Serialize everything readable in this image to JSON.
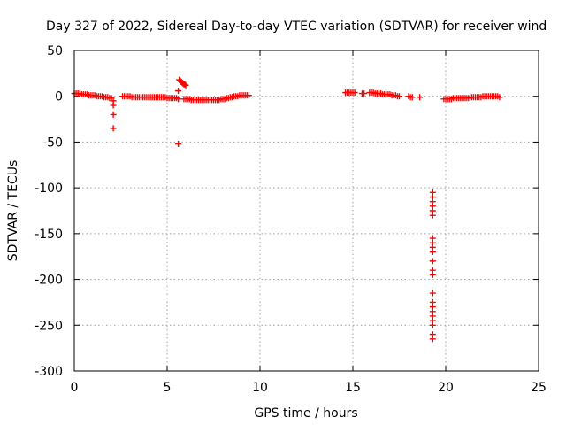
{
  "chart_data": {
    "type": "scatter",
    "title": "Day 327 of 2022, Sidereal Day-to-day VTEC variation (SDTVAR) for receiver wind",
    "xlabel": "GPS time / hours",
    "ylabel": "SDTVAR / TECUs",
    "xlim": [
      0,
      25
    ],
    "ylim": [
      -300,
      50
    ],
    "xticks": [
      0,
      5,
      10,
      15,
      20,
      25
    ],
    "yticks": [
      50,
      0,
      -50,
      -100,
      -150,
      -200,
      -250,
      -300
    ],
    "xtick_labels": [
      "0",
      "5",
      "10",
      "15",
      "20",
      "25"
    ],
    "ytick_labels": [
      "50",
      "0",
      "-50",
      "-100",
      "-150",
      "-200",
      "-250",
      "-300"
    ],
    "grid": true,
    "marker": "+",
    "color": "#ff0000",
    "series": [
      {
        "name": "SDTVAR",
        "x": [
          0.0,
          0.1,
          0.2,
          0.3,
          0.4,
          0.5,
          0.6,
          0.7,
          0.8,
          0.9,
          1.0,
          1.1,
          1.2,
          1.3,
          1.4,
          1.5,
          1.6,
          1.7,
          1.8,
          1.9,
          2.0,
          2.1,
          2.1,
          2.1,
          2.1,
          2.6,
          2.7,
          2.8,
          2.9,
          3.0,
          3.1,
          3.2,
          3.3,
          3.4,
          3.5,
          3.6,
          3.7,
          3.8,
          3.9,
          4.0,
          4.1,
          4.2,
          4.3,
          4.4,
          4.5,
          4.6,
          4.7,
          4.8,
          4.9,
          5.0,
          5.1,
          5.2,
          5.3,
          5.4,
          5.5,
          5.6,
          5.6,
          5.6,
          5.65,
          5.7,
          5.75,
          5.8,
          5.85,
          5.9,
          5.95,
          6.0,
          5.9,
          6.0,
          6.1,
          6.2,
          6.3,
          6.4,
          6.5,
          6.6,
          6.7,
          6.8,
          6.9,
          7.0,
          7.1,
          7.2,
          7.3,
          7.4,
          7.5,
          7.6,
          7.7,
          7.8,
          7.9,
          8.0,
          8.1,
          8.2,
          8.3,
          8.4,
          8.5,
          8.6,
          8.7,
          8.8,
          8.9,
          9.0,
          9.1,
          9.2,
          9.3,
          9.4,
          14.6,
          14.7,
          14.8,
          14.9,
          15.0,
          15.1,
          15.5,
          15.6,
          15.9,
          16.0,
          16.1,
          16.2,
          16.3,
          16.4,
          16.5,
          16.6,
          16.7,
          16.8,
          16.9,
          17.0,
          17.1,
          17.2,
          17.3,
          17.4,
          17.5,
          18.0,
          18.1,
          18.2,
          18.6,
          19.3,
          19.3,
          19.3,
          19.3,
          19.3,
          19.3,
          19.3,
          19.3,
          19.3,
          19.3,
          19.3,
          19.3,
          19.3,
          19.3,
          19.3,
          19.3,
          19.3,
          19.3,
          19.3,
          19.3,
          19.3,
          19.3,
          19.9,
          20.0,
          20.1,
          20.2,
          20.3,
          20.4,
          20.5,
          20.6,
          20.7,
          20.8,
          20.9,
          21.0,
          21.1,
          21.2,
          21.3,
          21.4,
          21.5,
          21.6,
          21.7,
          21.8,
          21.9,
          22.0,
          22.1,
          22.2,
          22.3,
          22.4,
          22.5,
          22.6,
          22.7,
          22.8,
          22.9
        ],
        "y": [
          3,
          3,
          3,
          3,
          2,
          2,
          2,
          2,
          1,
          1,
          1,
          1,
          0,
          0,
          0,
          0,
          -1,
          -1,
          -1,
          -2,
          -2,
          -5,
          -10,
          -20,
          -35,
          0,
          0,
          0,
          0,
          0,
          -1,
          -1,
          -1,
          -1,
          -1,
          -1,
          -1,
          -1,
          -1,
          -1,
          -1,
          -1,
          -1,
          -1,
          -1,
          -1,
          -1,
          -1,
          -1,
          -2,
          -2,
          -2,
          -2,
          -2,
          -2,
          -3,
          6,
          -52,
          18,
          17,
          16,
          15,
          14,
          13,
          13,
          12,
          -3,
          -3,
          -3,
          -3,
          -4,
          -4,
          -4,
          -4,
          -4,
          -4,
          -4,
          -4,
          -4,
          -4,
          -4,
          -4,
          -4,
          -4,
          -4,
          -4,
          -3,
          -3,
          -3,
          -2,
          -2,
          -1,
          -1,
          0,
          0,
          0,
          1,
          1,
          1,
          1,
          1,
          1,
          4,
          4,
          4,
          4,
          4,
          4,
          3,
          3,
          4,
          4,
          4,
          3,
          3,
          3,
          3,
          2,
          2,
          2,
          2,
          2,
          1,
          1,
          1,
          0,
          0,
          0,
          -1,
          -1,
          -1,
          -105,
          -110,
          -115,
          -120,
          -125,
          -130,
          -155,
          -160,
          -165,
          -170,
          -180,
          -190,
          -195,
          -215,
          -225,
          -230,
          -235,
          -240,
          -245,
          -250,
          -260,
          -265,
          -3,
          -3,
          -3,
          -3,
          -3,
          -2,
          -2,
          -2,
          -2,
          -2,
          -2,
          -2,
          -2,
          -2,
          -2,
          -1,
          -1,
          -1,
          -1,
          -1,
          -1,
          0,
          0,
          0,
          0,
          0,
          0,
          0,
          0,
          0,
          -1
        ]
      }
    ]
  }
}
